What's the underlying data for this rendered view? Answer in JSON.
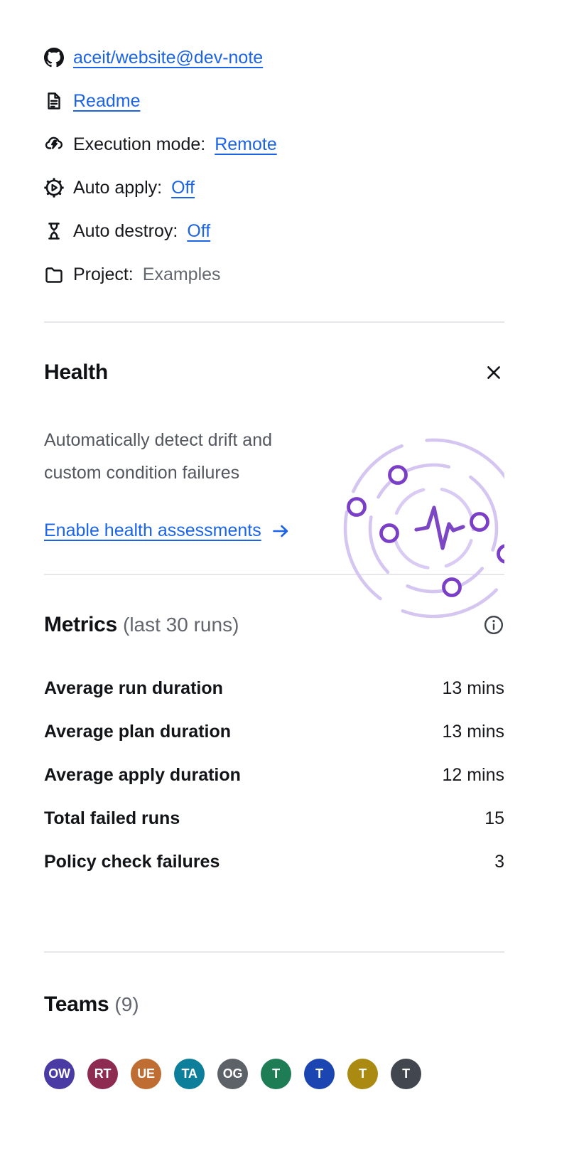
{
  "colors": {
    "link_blue": "#1b64e8",
    "text_primary": "#121418",
    "text_muted": "#62666e",
    "divider": "#e6e7ea",
    "illustration_purple": "#7b3ec9",
    "illustration_pulse": "#7c46c4",
    "illustration_ring": "#d9cbf3"
  },
  "details": {
    "repo": {
      "icon": "github-icon",
      "link": "aceit/website@dev-note"
    },
    "readme": {
      "icon": "file-text-icon",
      "link": "Readme"
    },
    "execution_mode": {
      "icon": "cloud-lightning-icon",
      "label": "Execution mode:",
      "link": "Remote"
    },
    "auto_apply": {
      "icon": "gear-play-icon",
      "label": "Auto apply:",
      "link": "Off"
    },
    "auto_destroy": {
      "icon": "hourglass-icon",
      "label": "Auto destroy:",
      "link": "Off"
    },
    "project": {
      "icon": "folder-icon",
      "label": "Project:",
      "value": "Examples"
    }
  },
  "health": {
    "title": "Health",
    "description": "Automatically detect drift and custom condition failures",
    "cta": "Enable health assessments"
  },
  "metrics": {
    "title": "Metrics",
    "subtitle": "(last 30 runs)",
    "rows": [
      {
        "label": "Average run duration",
        "value": "13 mins"
      },
      {
        "label": "Average plan duration",
        "value": "13 mins"
      },
      {
        "label": "Average apply duration",
        "value": "12 mins"
      },
      {
        "label": "Total failed runs",
        "value": "15"
      },
      {
        "label": "Policy check failures",
        "value": "3"
      }
    ]
  },
  "teams": {
    "title": "Teams",
    "count": "(9)",
    "avatars": [
      {
        "initials": "OW",
        "color": "#4a3aa3"
      },
      {
        "initials": "RT",
        "color": "#8e2b50"
      },
      {
        "initials": "UE",
        "color": "#bf6d33"
      },
      {
        "initials": "TA",
        "color": "#0d7f9b"
      },
      {
        "initials": "OG",
        "color": "#5d6268"
      },
      {
        "initials": "T",
        "color": "#1f7d55"
      },
      {
        "initials": "T",
        "color": "#1b45b0"
      },
      {
        "initials": "T",
        "color": "#aa8a10"
      },
      {
        "initials": "T",
        "color": "#42474f"
      }
    ]
  }
}
